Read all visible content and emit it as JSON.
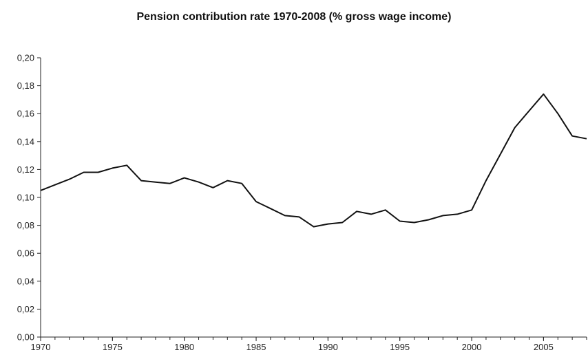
{
  "chart_data": {
    "type": "line",
    "title": "Pension contribution rate 1970-2008 (% gross wage income)",
    "xlabel": "",
    "ylabel": "",
    "xlim": [
      1970,
      2008
    ],
    "ylim": [
      0,
      0.2
    ],
    "x_ticks": [
      1970,
      1975,
      1980,
      1985,
      1990,
      1995,
      2000,
      2005
    ],
    "x_tick_labels": [
      "1970",
      "1975",
      "1980",
      "1985",
      "1990",
      "1995",
      "2000",
      "2005"
    ],
    "y_ticks": [
      0,
      0.02,
      0.04,
      0.06,
      0.08,
      0.1,
      0.12,
      0.14,
      0.16,
      0.18,
      0.2
    ],
    "y_tick_labels": [
      "0,00",
      "0,02",
      "0,04",
      "0,06",
      "0,08",
      "0,10",
      "0,12",
      "0,14",
      "0,16",
      "0,18",
      "0,20"
    ],
    "grid": false,
    "legend": "none",
    "series_color": "#111111",
    "series": [
      {
        "x": [
          1970,
          1971,
          1972,
          1973,
          1974,
          1975,
          1976,
          1977,
          1978,
          1979,
          1980,
          1981,
          1982,
          1983,
          1984,
          1985,
          1986,
          1987,
          1988,
          1989,
          1990,
          1991,
          1992,
          1993,
          1994,
          1995,
          1996,
          1997,
          1998,
          1999,
          2000,
          2001,
          2002,
          2003,
          2004,
          2005,
          2006,
          2007,
          2008
        ],
        "values": [
          0.105,
          0.109,
          0.113,
          0.118,
          0.118,
          0.121,
          0.123,
          0.112,
          0.111,
          0.11,
          0.114,
          0.111,
          0.107,
          0.112,
          0.11,
          0.097,
          0.092,
          0.087,
          0.086,
          0.079,
          0.081,
          0.082,
          0.09,
          0.088,
          0.091,
          0.083,
          0.082,
          0.084,
          0.087,
          0.088,
          0.091,
          0.112,
          0.131,
          0.15,
          0.162,
          0.174,
          0.16,
          0.144,
          0.142
        ]
      }
    ]
  }
}
